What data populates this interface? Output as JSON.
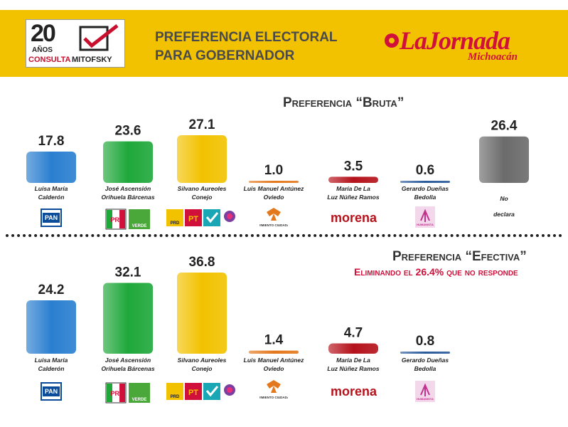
{
  "header": {
    "title_line1": "PREFERENCIA ELECTORAL",
    "title_line2": "PARA GOBERNADOR",
    "logo_left": {
      "years": "20",
      "anos": "AÑOS",
      "consulta": "CONSULTA",
      "mitofsky": "MITOFSKY"
    },
    "logo_right": {
      "name": "LaJornada",
      "region": "Michoacán"
    }
  },
  "colors": {
    "header_band": "#f2c200",
    "pan": "#2a7fd0",
    "pri_verde": "#1fa83a",
    "prd": "#f2c200",
    "movimiento_ciudadano": "#e4781c",
    "morena": "#b5121b",
    "humanista": "#2a5a9a",
    "no_declara": "#6b6b6b"
  },
  "candidates": [
    {
      "name_line1": "Luisa María",
      "name_line2": "Calderón",
      "party_icon": "pan-logo",
      "party_labels": [
        "PAN"
      ]
    },
    {
      "name_line1": "José Ascensión",
      "name_line2": "Orihuela Bárcenas",
      "party_icon": "pri-verde-logo",
      "party_labels": [
        "PRI",
        "VERDE"
      ]
    },
    {
      "name_line1": "Silvano Aureoles",
      "name_line2": "Conejo",
      "party_icon": "prd-pt-nueva-alianza-logo",
      "party_labels": [
        "PRD",
        "PT"
      ]
    },
    {
      "name_line1": "Luis Manuel Antúnez",
      "name_line2": "Oviedo",
      "party_icon": "movimiento-ciudadano-logo",
      "party_labels": [
        "MOVIMIENTO CIUDADANO"
      ]
    },
    {
      "name_line1": "María De La",
      "name_line2": "Luz Núñez Ramos",
      "party_icon": "morena-logo",
      "party_labels": [
        "morena"
      ]
    },
    {
      "name_line1": "Gerardo Dueñas",
      "name_line2": "Bedolla",
      "party_icon": "humanista-logo",
      "party_labels": [
        "HUMANISTA"
      ]
    },
    {
      "name_line1": "No",
      "name_line2": "declara",
      "party_icon": "",
      "party_labels": []
    }
  ],
  "chart_data": [
    {
      "type": "bar",
      "title": "Preferencia “Bruta”",
      "categories": [
        "Luisa María Calderón",
        "José Ascensión Orihuela Bárcenas",
        "Silvano Aureoles Conejo",
        "Luis Manuel Antúnez Oviedo",
        "María De La Luz Núñez Ramos",
        "Gerardo Dueñas Bedolla",
        "No declara"
      ],
      "values": [
        17.8,
        23.6,
        27.1,
        1.0,
        3.5,
        0.6,
        26.4
      ],
      "labels": [
        "17.8",
        "23.6",
        "27.1",
        "1.0",
        "3.5",
        "0.6",
        "26.4"
      ],
      "colors": [
        "#2a7fd0",
        "#1fa83a",
        "#f2c200",
        "#e4781c",
        "#b5121b",
        "#2a5a9a",
        "#6b6b6b"
      ],
      "ylim": [
        0,
        27.1
      ],
      "grid": false,
      "legend": "none"
    },
    {
      "type": "bar",
      "title": "Preferencia “Efectiva”",
      "subtitle": "Eliminando el 26.4% que no responde",
      "categories": [
        "Luisa María Calderón",
        "José Ascensión Orihuela Bárcenas",
        "Silvano Aureoles Conejo",
        "Luis Manuel Antúnez Oviedo",
        "María De La Luz Núñez Ramos",
        "Gerardo Dueñas Bedolla"
      ],
      "values": [
        24.2,
        32.1,
        36.8,
        1.4,
        4.7,
        0.8
      ],
      "labels": [
        "24.2",
        "32.1",
        "36.8",
        "1.4",
        "4.7",
        "0.8"
      ],
      "colors": [
        "#2a7fd0",
        "#1fa83a",
        "#f2c200",
        "#e4781c",
        "#b5121b",
        "#2a5a9a"
      ],
      "ylim": [
        0,
        36.8
      ],
      "grid": false,
      "legend": "none"
    }
  ]
}
